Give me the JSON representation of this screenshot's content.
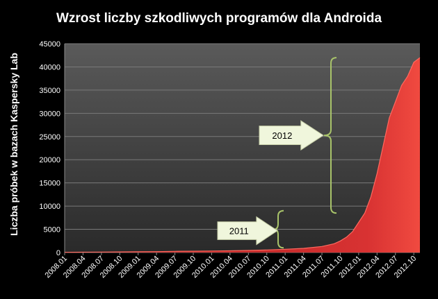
{
  "chart_data": {
    "type": "area",
    "title": "Wzrost liczby szkodliwych programów dla Androida",
    "xlabel": "",
    "ylabel": "Liczba próbek w bazach Kaspersky Lab",
    "ylim": [
      0,
      45000
    ],
    "yticks": [
      0,
      5000,
      10000,
      15000,
      20000,
      25000,
      30000,
      35000,
      40000,
      45000
    ],
    "xticks": [
      "2008.01",
      "2008.04",
      "2008.07",
      "2008.10",
      "2009.01",
      "2009.04",
      "2009.07",
      "2009.10",
      "2010.01",
      "2010.04",
      "2010.07",
      "2010.10",
      "2011.01",
      "2011.04",
      "2011.07",
      "2011.10",
      "2012.01",
      "2012.04",
      "2012.07",
      "2012.10"
    ],
    "grid": true,
    "colors": {
      "area": "#c82a2a",
      "area_light": "#e8413a",
      "grid": "#7a7a7a",
      "plot_bg": "#3c3c3c",
      "arrow": "#f0f6dc",
      "bracket": "#a9c46a"
    },
    "series": [
      {
        "x": [
          "2008.01",
          "2008.04",
          "2008.07",
          "2008.10",
          "2009.01",
          "2009.04",
          "2009.07",
          "2009.10",
          "2010.01",
          "2010.04",
          "2010.07",
          "2010.10",
          "2011.01",
          "2011.04",
          "2011.07",
          "2011.09",
          "2011.10",
          "2011.11",
          "2011.12",
          "2012.01",
          "2012.02",
          "2012.03",
          "2012.04",
          "2012.05",
          "2012.06",
          "2012.07",
          "2012.08",
          "2012.09",
          "2012.10",
          "2012.11"
        ],
        "values": [
          50,
          80,
          100,
          130,
          170,
          200,
          250,
          280,
          330,
          380,
          450,
          550,
          700,
          900,
          1300,
          1900,
          2500,
          3300,
          4500,
          6500,
          8500,
          12000,
          17000,
          23000,
          29000,
          32500,
          36000,
          38000,
          41000,
          42000
        ]
      }
    ]
  },
  "annotations": [
    {
      "label": "2011",
      "range": [
        1000,
        9000
      ]
    },
    {
      "label": "2012",
      "range": [
        8500,
        42000
      ]
    }
  ]
}
